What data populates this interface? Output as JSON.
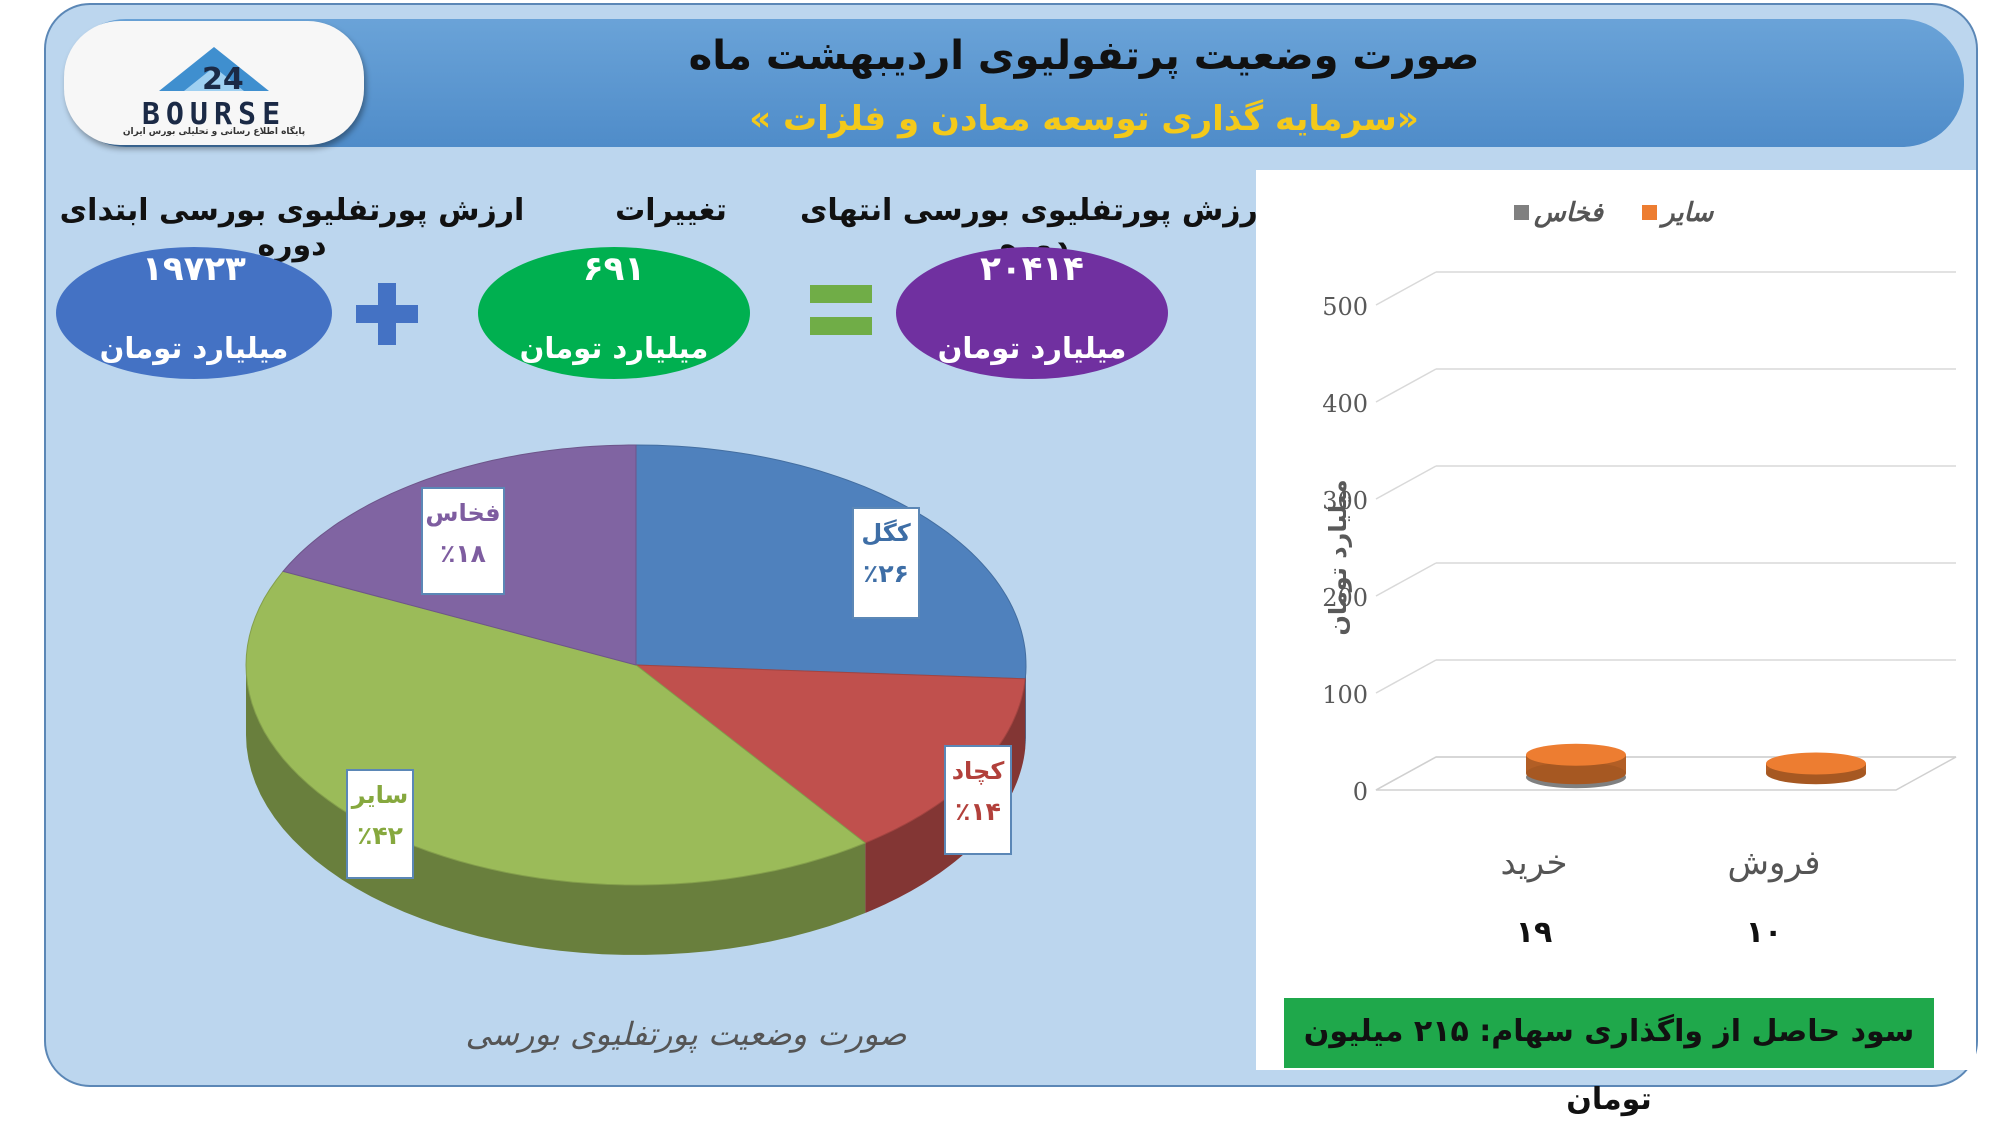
{
  "header": {
    "title": "صورت وضعیت پرتفولیوی اردیبهشت ماه",
    "subtitle": "«سرمایه گذاری توسعه معادن و فلزات »"
  },
  "logo": {
    "text": "BOURSE",
    "subtext": "پایگاه اطلاع رسانی و تحلیلی بورس ایران"
  },
  "kpis": {
    "start": {
      "label": "ارزش پورتفلیوی بورسی ابتدای دوره",
      "value": "۱۹۷۲۳",
      "unit": "میلیارد تومان",
      "color": "#4472c4"
    },
    "change": {
      "label": "تغییرات",
      "value": "۶۹۱",
      "unit": "میلیارد تومان",
      "color": "#00b050"
    },
    "end": {
      "label": "ارزش پورتفلیوی بورسی انتهای دوره",
      "value": "۲۰۴۱۴",
      "unit": "میلیارد تومان",
      "color": "#7030a0"
    },
    "plus_color": "#4472c4",
    "equals_color": "#70ad47"
  },
  "pie_caption": "صورت وضعیت پورتفلیوی بورسی",
  "profit_text": "سود حاصل از واگذاری سهام: ۲۱۵ میلیون تومان",
  "chart_data": [
    {
      "type": "pie",
      "title": "صورت وضعیت پورتفلیوی بورسی",
      "slices": [
        {
          "name": "کگل",
          "value": 26,
          "label": "٪۲۶",
          "color": "#4f81bd"
        },
        {
          "name": "کچاد",
          "value": 14,
          "label": "٪۱۴",
          "color": "#c0504d"
        },
        {
          "name": "سایر",
          "value": 42,
          "label": "٪۴۲",
          "color": "#9bbb59"
        },
        {
          "name": "فخاس",
          "value": 18,
          "label": "٪۱۸",
          "color": "#8064a2"
        }
      ]
    },
    {
      "type": "bar",
      "categories": [
        "خرید",
        "فروش"
      ],
      "value_labels": [
        "۱۹",
        "۱۰"
      ],
      "series": [
        {
          "name": "فخاس",
          "values": [
            0,
            0
          ],
          "color": "#808080"
        },
        {
          "name": "سایر",
          "values": [
            19,
            10
          ],
          "color": "#ed7d31"
        }
      ],
      "ylabel": "میلیارد تومان",
      "ylim": [
        0,
        500
      ],
      "yticks": [
        0,
        100,
        200,
        300,
        400,
        500
      ],
      "grid": true,
      "legend": "top"
    }
  ]
}
